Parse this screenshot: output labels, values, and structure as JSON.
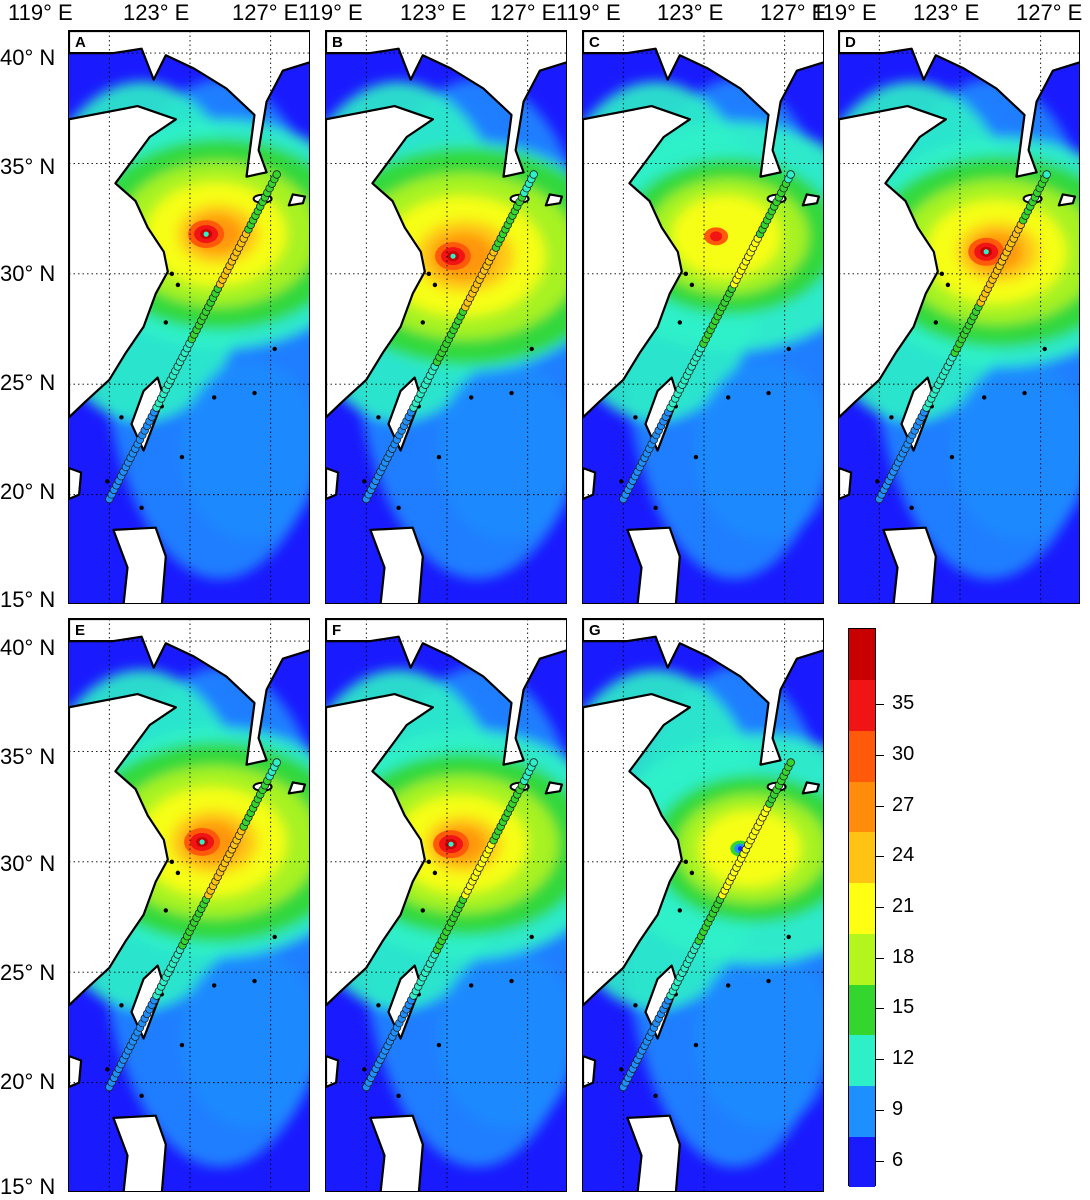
{
  "axes": {
    "x_ticks": [
      "119° E",
      "123° E",
      "127° E"
    ],
    "y_ticks": [
      "40° N",
      "35° N",
      "30° N",
      "25° N",
      "20° N",
      "15° N"
    ]
  },
  "panels": [
    {
      "label": "A",
      "eye": "spread",
      "eye_lon": 123.8,
      "eye_lat": 31.8,
      "intensity": 0.75
    },
    {
      "label": "B",
      "eye": "strong",
      "eye_lon": 123.3,
      "eye_lat": 30.8,
      "intensity": 0.9
    },
    {
      "label": "C",
      "eye": "weak",
      "eye_lon": 123.6,
      "eye_lat": 31.7,
      "intensity": 0.55
    },
    {
      "label": "D",
      "eye": "strong",
      "eye_lon": 124.3,
      "eye_lat": 31.0,
      "intensity": 0.75
    },
    {
      "label": "E",
      "eye": "strong",
      "eye_lon": 123.6,
      "eye_lat": 30.9,
      "intensity": 0.8
    },
    {
      "label": "F",
      "eye": "strong",
      "eye_lon": 123.2,
      "eye_lat": 30.8,
      "intensity": 0.7
    },
    {
      "label": "G",
      "eye": "calm",
      "eye_lon": 124.8,
      "eye_lat": 30.6,
      "intensity": 0.5
    }
  ],
  "track": {
    "start_lon": 119.0,
    "start_lat": 19.8,
    "end_lon": 127.3,
    "end_lat": 34.5
  },
  "colorbar": {
    "ticks": [
      "35",
      "30",
      "27",
      "24",
      "21",
      "18",
      "15",
      "12",
      "9",
      "6"
    ],
    "levels": [
      {
        "v": 6,
        "color": "#1a1aff"
      },
      {
        "v": 9,
        "color": "#1e8fff"
      },
      {
        "v": 12,
        "color": "#2ef0c8"
      },
      {
        "v": 15,
        "color": "#34d62e"
      },
      {
        "v": 18,
        "color": "#b4f51e"
      },
      {
        "v": 21,
        "color": "#ffff14"
      },
      {
        "v": 24,
        "color": "#ffc314"
      },
      {
        "v": 27,
        "color": "#ff8c0a"
      },
      {
        "v": 30,
        "color": "#ff5a0a"
      },
      {
        "v": 35,
        "color": "#f01414"
      },
      {
        "v": 38,
        "color": "#c80000"
      }
    ]
  },
  "chart_data": {
    "type": "heatmap",
    "title": "",
    "xlabel": "",
    "ylabel": "",
    "xlim": [
      117,
      129
    ],
    "ylim": [
      15,
      41
    ],
    "x_ticks": [
      119,
      123,
      127
    ],
    "y_ticks": [
      40,
      35,
      30,
      25,
      20,
      15
    ],
    "grid": true,
    "panels": [
      "A",
      "B",
      "C",
      "D",
      "E",
      "F",
      "G"
    ],
    "colorbar_ticks": [
      35,
      30,
      27,
      24,
      21,
      18,
      15,
      12,
      9,
      6
    ]
  }
}
